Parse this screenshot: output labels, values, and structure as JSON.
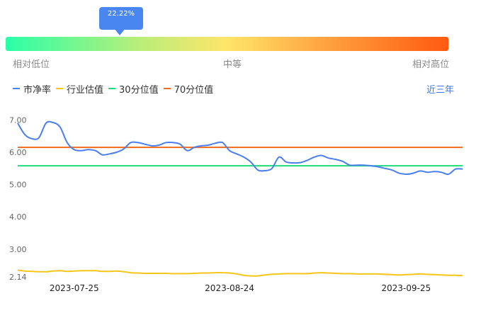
{
  "gauge": {
    "percent_label": "22.22%",
    "position": 0.2222,
    "low_label": "相对低位",
    "mid_label": "中等",
    "high_label": "相对高位"
  },
  "legend": {
    "items": [
      {
        "label": "市净率",
        "color": "#4a7ff0"
      },
      {
        "label": "行业估值",
        "color": "#f5c518"
      },
      {
        "label": "30分位值",
        "color": "#1edb7a"
      },
      {
        "label": "70分位值",
        "color": "#ef6b1d"
      }
    ],
    "range_button": "近三年"
  },
  "chart_data": {
    "type": "line",
    "ylim": [
      2.14,
      7.14
    ],
    "y_ticks": [
      "7.00",
      "6.00",
      "5.00",
      "4.00",
      "3.00",
      "2.14"
    ],
    "y_tick_values": [
      7.0,
      6.0,
      5.0,
      4.0,
      3.0,
      2.14
    ],
    "x_ticks": [
      "2023-07-25",
      "2023-08-24",
      "2023-09-25"
    ],
    "x_tick_index": [
      8,
      30,
      55
    ],
    "n_points": 64,
    "series": [
      {
        "name": "市净率",
        "color": "#4a7ff0",
        "values": [
          6.9,
          6.55,
          6.42,
          6.45,
          6.9,
          6.92,
          6.78,
          6.3,
          6.08,
          6.05,
          6.08,
          6.05,
          5.92,
          5.95,
          6.0,
          6.1,
          6.3,
          6.3,
          6.25,
          6.2,
          6.22,
          6.3,
          6.3,
          6.25,
          6.05,
          6.15,
          6.2,
          6.22,
          6.28,
          6.3,
          6.05,
          5.95,
          5.85,
          5.7,
          5.45,
          5.43,
          5.5,
          5.85,
          5.7,
          5.67,
          5.68,
          5.75,
          5.85,
          5.9,
          5.82,
          5.78,
          5.72,
          5.6,
          5.6,
          5.6,
          5.58,
          5.55,
          5.5,
          5.45,
          5.35,
          5.32,
          5.35,
          5.42,
          5.38,
          5.4,
          5.38,
          5.32,
          5.48,
          5.48
        ]
      },
      {
        "name": "行业估值",
        "color": "#f5c518",
        "values": [
          2.35,
          2.32,
          2.31,
          2.3,
          2.3,
          2.32,
          2.33,
          2.31,
          2.32,
          2.33,
          2.33,
          2.33,
          2.31,
          2.31,
          2.32,
          2.3,
          2.27,
          2.26,
          2.25,
          2.25,
          2.25,
          2.25,
          2.24,
          2.24,
          2.24,
          2.25,
          2.26,
          2.26,
          2.27,
          2.27,
          2.26,
          2.23,
          2.19,
          2.17,
          2.17,
          2.2,
          2.22,
          2.23,
          2.24,
          2.24,
          2.24,
          2.24,
          2.26,
          2.27,
          2.26,
          2.25,
          2.24,
          2.24,
          2.23,
          2.23,
          2.23,
          2.23,
          2.22,
          2.21,
          2.2,
          2.21,
          2.22,
          2.23,
          2.22,
          2.21,
          2.2,
          2.19,
          2.19,
          2.18
        ]
      },
      {
        "name": "30分位值",
        "color": "#1edb7a",
        "values": [
          5.58
        ]
      },
      {
        "name": "70分位值",
        "color": "#ef6b1d",
        "values": [
          6.15
        ]
      }
    ]
  }
}
